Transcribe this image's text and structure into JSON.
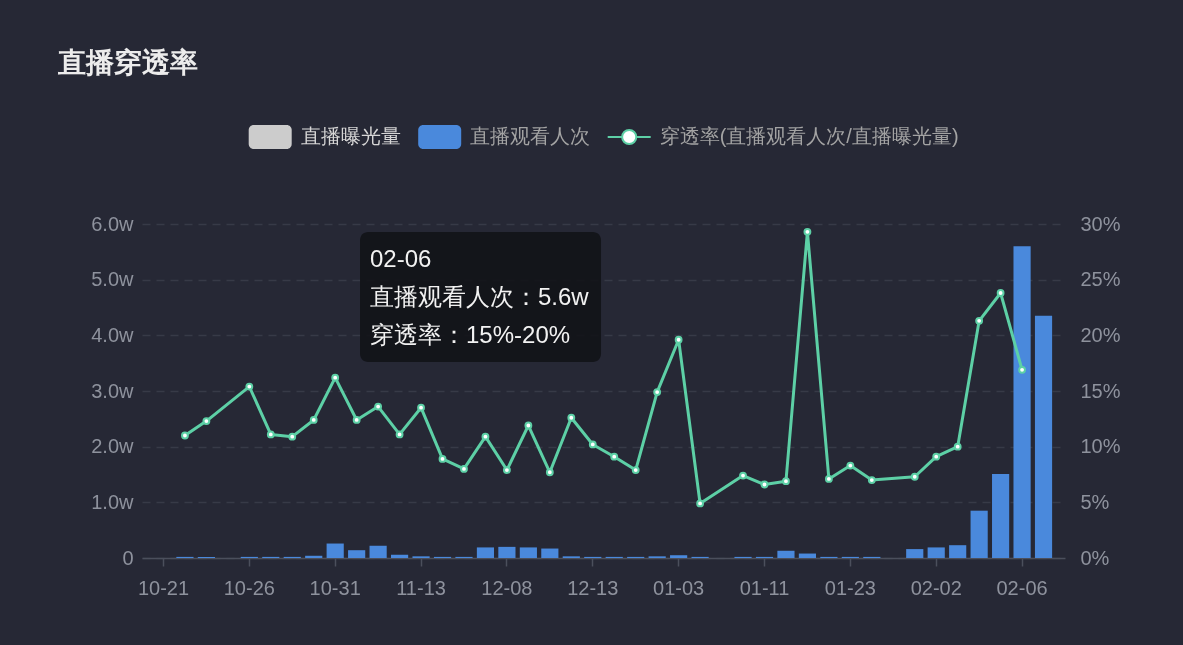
{
  "chart_data": {
    "type": "bar",
    "title": "直播穿透率",
    "categories": [
      "10-21",
      null,
      null,
      null,
      "10-26",
      null,
      null,
      null,
      "10-31",
      null,
      null,
      null,
      "11-13",
      null,
      null,
      null,
      "12-08",
      null,
      null,
      null,
      "12-13",
      null,
      null,
      null,
      "01-03",
      null,
      null,
      null,
      "01-11",
      null,
      null,
      null,
      "01-23",
      null,
      null,
      null,
      "02-02",
      null,
      null,
      null,
      "02-06",
      null
    ],
    "series": [
      {
        "name": "直播曝光量",
        "color": "#cccccc",
        "values": [
          null,
          null,
          null,
          null,
          null,
          null,
          null,
          null,
          null,
          null,
          null,
          null,
          null,
          null,
          null,
          null,
          null,
          null,
          null,
          null,
          null,
          null,
          null,
          null,
          null,
          null,
          null,
          null,
          null,
          null,
          null,
          null,
          null,
          null,
          null,
          null,
          null,
          null,
          null,
          null,
          null,
          null
        ]
      },
      {
        "name": "直播观看人次",
        "color": "#4a89dc",
        "values": [
          null,
          0.02,
          0.02,
          null,
          0.02,
          0.02,
          0.02,
          0.04,
          0.26,
          0.14,
          0.22,
          0.06,
          0.03,
          0.02,
          0.02,
          0.19,
          0.2,
          0.19,
          0.17,
          0.03,
          0.02,
          0.02,
          0.02,
          0.03,
          0.05,
          0.02,
          null,
          0.02,
          0.02,
          0.13,
          0.08,
          0.02,
          0.02,
          0.02,
          null,
          0.16,
          0.19,
          0.23,
          0.85,
          1.51,
          5.6,
          4.35
        ]
      },
      {
        "name": "穿透率(直播观看人次/直播曝光量)",
        "type": "line",
        "axis": "y2",
        "color": "#5dd0a6",
        "values": [
          null,
          11.0,
          12.3,
          null,
          15.4,
          11.1,
          10.9,
          12.4,
          16.2,
          12.4,
          13.6,
          11.1,
          13.5,
          8.9,
          8.0,
          10.9,
          7.9,
          11.9,
          7.7,
          12.6,
          10.2,
          9.1,
          7.9,
          14.9,
          19.6,
          4.9,
          null,
          7.4,
          6.6,
          6.9,
          29.3,
          7.1,
          8.3,
          7.0,
          null,
          7.3,
          9.1,
          10.0,
          21.3,
          23.8,
          16.9,
          null
        ]
      }
    ],
    "ylim": [
      0,
      6
    ],
    "yticks": [
      0,
      {
        "value": 1,
        "label": "1.0w"
      },
      {
        "value": 2,
        "label": "2.0w"
      },
      {
        "value": 3,
        "label": "3.0w"
      },
      {
        "value": 4,
        "label": "4.0w"
      },
      {
        "value": 5,
        "label": "5.0w"
      },
      {
        "value": 6,
        "label": "6.0w"
      }
    ],
    "y2lim": [
      0,
      30
    ],
    "y2ticks": [
      {
        "value": 0,
        "label": "0%"
      },
      {
        "value": 5,
        "label": "5%"
      },
      {
        "value": 10,
        "label": "10%"
      },
      {
        "value": 15,
        "label": "15%"
      },
      {
        "value": 20,
        "label": "20%"
      },
      {
        "value": 25,
        "label": "25%"
      },
      {
        "value": 30,
        "label": "30%"
      }
    ],
    "grid": "y",
    "legend": "top",
    "marker": "circle",
    "line_style": "solid",
    "annotations": [
      "02-06",
      "直播观看人次：5.6w",
      "穿透率：15%-20%"
    ]
  }
}
